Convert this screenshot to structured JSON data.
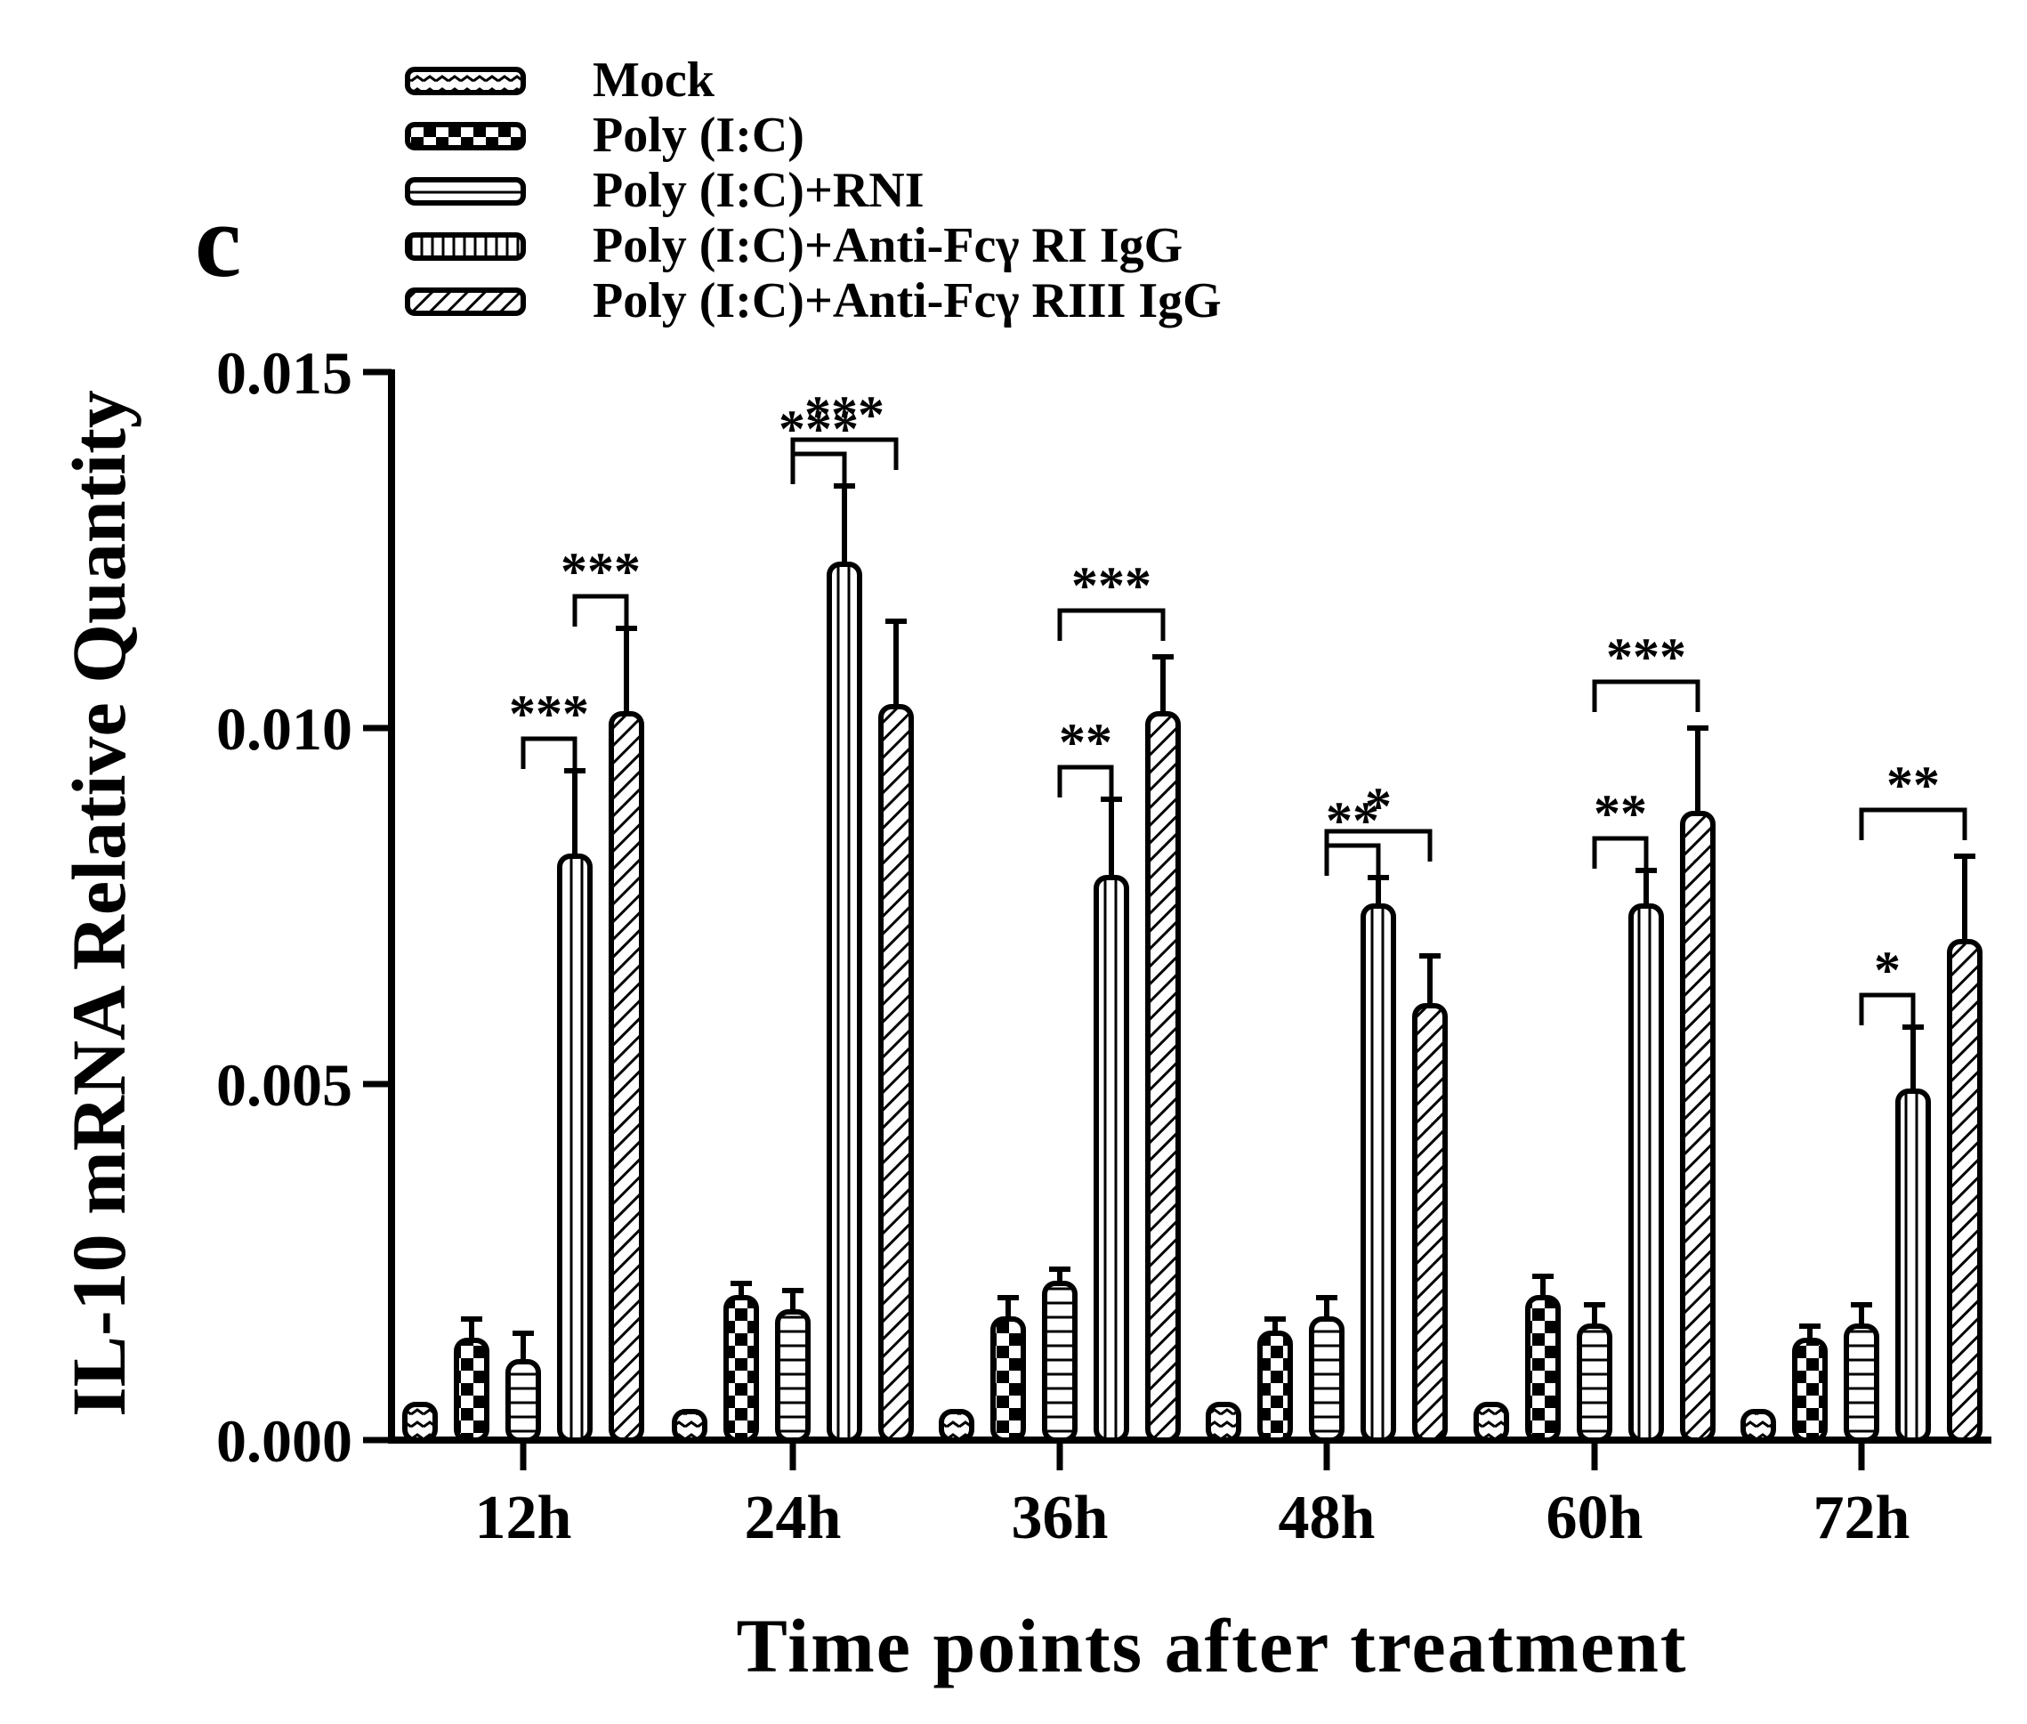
{
  "panel_label": "c",
  "chart_data": {
    "type": "bar",
    "title": "",
    "xlabel": "Time points after treatment",
    "ylabel": "IL-10 mRNA Relative Quantity",
    "ylim": [
      0,
      0.015
    ],
    "yticks": [
      "0.000",
      "0.005",
      "0.010",
      "0.015"
    ],
    "ytick_values": [
      0,
      0.005,
      0.01,
      0.015
    ],
    "categories": [
      "12h",
      "24h",
      "36h",
      "48h",
      "60h",
      "72h"
    ],
    "legend_position": "top",
    "series": [
      {
        "name": "Mock",
        "pattern": "zigzag",
        "values": [
          0.0005,
          0.0004,
          0.0004,
          0.0005,
          0.0005,
          0.0004
        ],
        "errors": [
          0.0,
          0.0,
          0.0,
          0.0,
          0.0,
          0.0
        ]
      },
      {
        "name": "Poly (I:C)",
        "pattern": "checker",
        "values": [
          0.0014,
          0.002,
          0.0017,
          0.0015,
          0.002,
          0.0014
        ],
        "errors": [
          0.0003,
          0.0002,
          0.0003,
          0.0002,
          0.0003,
          0.0002
        ]
      },
      {
        "name": "Poly (I:C)+RNI",
        "pattern": "horizontal",
        "values": [
          0.0011,
          0.0018,
          0.0022,
          0.0017,
          0.0016,
          0.0016
        ],
        "errors": [
          0.0004,
          0.0003,
          0.0002,
          0.0003,
          0.0003,
          0.0003
        ]
      },
      {
        "name": "Poly (I:C)+Anti-Fcγ  RI IgG",
        "pattern": "vertical",
        "values": [
          0.0082,
          0.0123,
          0.0079,
          0.0075,
          0.0075,
          0.0049
        ],
        "errors": [
          0.0012,
          0.0011,
          0.0011,
          0.0004,
          0.0005,
          0.0009
        ]
      },
      {
        "name": "Poly (I:C)+Anti-Fcγ  RIII IgG",
        "pattern": "diagonal",
        "values": [
          0.0102,
          0.0103,
          0.0102,
          0.0061,
          0.0088,
          0.007
        ],
        "errors": [
          0.0012,
          0.0012,
          0.0008,
          0.0007,
          0.0012,
          0.0012
        ]
      }
    ],
    "significance": [
      {
        "group": 0,
        "from": 3,
        "to": 4,
        "label": "***"
      },
      {
        "group": 0,
        "from": 2,
        "to": 3,
        "label": "***"
      },
      {
        "group": 1,
        "from": 2,
        "to": 4,
        "label": "***"
      },
      {
        "group": 1,
        "from": 2,
        "to": 3,
        "label": "***"
      },
      {
        "group": 2,
        "from": 2,
        "to": 4,
        "label": "***"
      },
      {
        "group": 2,
        "from": 2,
        "to": 3,
        "label": "**"
      },
      {
        "group": 3,
        "from": 2,
        "to": 4,
        "label": "*"
      },
      {
        "group": 3,
        "from": 2,
        "to": 3,
        "label": "**"
      },
      {
        "group": 4,
        "from": 2,
        "to": 4,
        "label": "***"
      },
      {
        "group": 4,
        "from": 2,
        "to": 3,
        "label": "**"
      },
      {
        "group": 5,
        "from": 2,
        "to": 4,
        "label": "**"
      },
      {
        "group": 5,
        "from": 2,
        "to": 3,
        "label": "*"
      }
    ]
  }
}
